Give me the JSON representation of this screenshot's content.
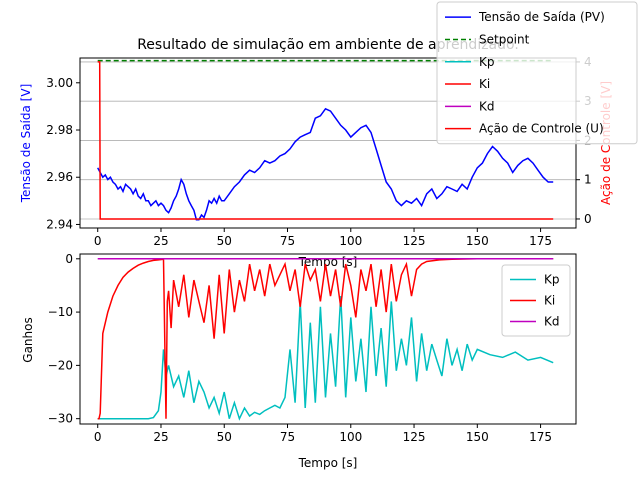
{
  "chart_data": [
    {
      "type": "line",
      "title": "Resultado de simulação em ambiente de aprendizado.",
      "xlabel": "Tempo [s]",
      "ylabel": "Tensão de Saída [V]",
      "ylabel_right": "Ação de Controle [V]",
      "xlim": [
        -7,
        189
      ],
      "ylim": [
        2.9385,
        3.0105
      ],
      "ylim_right": [
        -0.23,
        4.1
      ],
      "x_ticks": [
        "0",
        "25",
        "50",
        "75",
        "100",
        "125",
        "150",
        "175"
      ],
      "y_ticks": [
        "2.94",
        "2.96",
        "2.98",
        "3.00"
      ],
      "y_ticks_right": [
        "0",
        "1",
        "2",
        "3",
        "4"
      ],
      "grid": true,
      "legend": "top-right",
      "colors": {
        "pv": "#0000ff",
        "setpoint": "#008000",
        "kp": "#00bfbf",
        "ki": "#ff0000",
        "kd": "#bf00bf",
        "u": "#ff0000"
      },
      "series": [
        {
          "name": "Tensão de Saída (PV)",
          "axis": "left",
          "x": [
            0,
            1,
            2,
            3,
            4,
            5,
            6,
            7,
            8,
            9,
            10,
            11,
            12,
            13,
            14,
            15,
            16,
            17,
            18,
            19,
            20,
            21,
            22,
            23,
            24,
            25,
            26,
            27,
            28,
            29,
            30,
            31,
            32,
            33,
            34,
            35,
            36,
            37,
            38,
            39,
            40,
            41,
            42,
            43,
            44,
            45,
            46,
            47,
            48,
            49,
            50,
            52,
            54,
            56,
            58,
            60,
            62,
            64,
            66,
            68,
            70,
            72,
            74,
            76,
            78,
            80,
            82,
            84,
            86,
            88,
            90,
            92,
            94,
            96,
            98,
            100,
            102,
            104,
            106,
            108,
            110,
            112,
            114,
            116,
            118,
            120,
            122,
            124,
            126,
            128,
            130,
            132,
            134,
            136,
            138,
            140,
            142,
            144,
            146,
            148,
            150,
            152,
            154,
            156,
            158,
            160,
            162,
            164,
            166,
            168,
            170,
            172,
            174,
            176,
            178,
            180
          ],
          "y": [
            2.964,
            2.962,
            2.96,
            2.961,
            2.959,
            2.96,
            2.958,
            2.957,
            2.955,
            2.956,
            2.954,
            2.957,
            2.956,
            2.955,
            2.953,
            2.955,
            2.952,
            2.951,
            2.953,
            2.95,
            2.95,
            2.948,
            2.949,
            2.95,
            2.948,
            2.949,
            2.948,
            2.946,
            2.945,
            2.947,
            2.95,
            2.952,
            2.955,
            2.959,
            2.957,
            2.953,
            2.95,
            2.948,
            2.946,
            2.942,
            2.942,
            2.944,
            2.943,
            2.946,
            2.95,
            2.949,
            2.951,
            2.949,
            2.952,
            2.95,
            2.95,
            2.953,
            2.956,
            2.958,
            2.961,
            2.963,
            2.962,
            2.964,
            2.967,
            2.966,
            2.967,
            2.969,
            2.97,
            2.972,
            2.975,
            2.977,
            2.978,
            2.979,
            2.985,
            2.986,
            2.989,
            2.988,
            2.985,
            2.982,
            2.98,
            2.977,
            2.979,
            2.981,
            2.982,
            2.979,
            2.972,
            2.965,
            2.958,
            2.955,
            2.95,
            2.948,
            2.95,
            2.949,
            2.951,
            2.948,
            2.953,
            2.955,
            2.951,
            2.953,
            2.956,
            2.955,
            2.954,
            2.957,
            2.955,
            2.96,
            2.964,
            2.966,
            2.97,
            2.973,
            2.971,
            2.968,
            2.966,
            2.962,
            2.965,
            2.967,
            2.968,
            2.966,
            2.963,
            2.96,
            2.958,
            2.958
          ]
        },
        {
          "name": "Setpoint",
          "axis": "left",
          "x": [
            0,
            180
          ],
          "y": [
            3.0094,
            3.0094
          ]
        },
        {
          "name": "Ação de Controle (U)",
          "axis": "right",
          "x": [
            0,
            0.8,
            1,
            180
          ],
          "y": [
            4,
            4,
            0,
            0
          ]
        }
      ]
    },
    {
      "type": "line",
      "title": "",
      "xlabel": "Tempo [s]",
      "ylabel": "Ganhos",
      "xlim": [
        -7,
        189
      ],
      "ylim": [
        -31,
        0.9
      ],
      "x_ticks": [
        "0",
        "25",
        "50",
        "75",
        "100",
        "125",
        "150",
        "175"
      ],
      "y_ticks": [
        "0",
        "−10",
        "−20",
        "−30"
      ],
      "grid": false,
      "legend": "top-right",
      "series": [
        {
          "name": "Kp",
          "x": [
            0,
            5,
            10,
            15,
            20,
            22,
            24,
            25,
            26,
            27,
            28,
            30,
            32,
            34,
            36,
            38,
            40,
            42,
            44,
            46,
            48,
            50,
            52,
            54,
            56,
            58,
            60,
            62,
            64,
            66,
            68,
            70,
            72,
            74,
            76,
            78,
            80,
            82,
            84,
            86,
            88,
            90,
            92,
            94,
            96,
            98,
            100,
            102,
            104,
            106,
            108,
            110,
            112,
            114,
            116,
            118,
            120,
            122,
            124,
            126,
            128,
            130,
            132,
            134,
            136,
            138,
            140,
            142,
            144,
            146,
            148,
            150,
            155,
            160,
            165,
            170,
            175,
            180
          ],
          "y": [
            -30,
            -30,
            -30,
            -30,
            -30,
            -29.8,
            -28.5,
            -25,
            -17,
            -22,
            -20,
            -24,
            -22,
            -26,
            -21,
            -27,
            -23,
            -25,
            -28,
            -26,
            -29,
            -25,
            -30,
            -27,
            -30,
            -28,
            -29.5,
            -28.8,
            -29.2,
            -28.5,
            -28,
            -27.5,
            -28,
            -26,
            -17,
            -27,
            -8,
            -28,
            -12,
            -27,
            -9,
            -26,
            -14,
            -24,
            -7,
            -26,
            -11,
            -23,
            -15,
            -25,
            -9,
            -22,
            -13,
            -24,
            -8,
            -21,
            -15,
            -20,
            -11,
            -23,
            -14,
            -21,
            -16,
            -19,
            -22,
            -15,
            -20,
            -17,
            -21,
            -16,
            -19,
            -17,
            -18,
            -18.5,
            -17.5,
            -19,
            -18.5,
            -19.5
          ]
        },
        {
          "name": "Ki",
          "x": [
            0,
            0.5,
            1,
            2,
            4,
            6,
            8,
            10,
            12,
            14,
            16,
            18,
            20,
            22,
            24,
            26,
            27,
            27.5,
            28,
            29,
            30,
            32,
            34,
            36,
            38,
            40,
            42,
            44,
            46,
            48,
            50,
            52,
            54,
            56,
            58,
            60,
            62,
            64,
            66,
            68,
            70,
            72,
            74,
            76,
            78,
            80,
            82,
            84,
            86,
            88,
            90,
            92,
            94,
            96,
            98,
            100,
            102,
            104,
            106,
            108,
            110,
            112,
            114,
            116,
            118,
            120,
            122,
            124,
            126,
            128,
            130,
            135,
            140,
            150,
            160,
            170,
            180
          ],
          "y": [
            -30,
            -30,
            -29,
            -14,
            -10,
            -7,
            -5,
            -3.5,
            -2.5,
            -1.8,
            -1.2,
            -0.8,
            -0.5,
            -0.3,
            -0.2,
            -0.1,
            -30,
            -8,
            -6,
            -13,
            -4,
            -9,
            -3,
            -11,
            -4,
            -8,
            -12,
            -5,
            -15,
            -3,
            -14,
            -2,
            -10,
            -4,
            -8,
            -1,
            -6,
            -2,
            -7,
            -1,
            -5,
            -3,
            -1,
            -6,
            -2,
            -9,
            -1,
            -4,
            -2,
            -8,
            -1,
            -7,
            -2,
            -9,
            -1,
            -5,
            -11,
            -2,
            -6,
            -1,
            -9,
            -2,
            -10,
            -1,
            -8,
            -3,
            -1,
            -7,
            -2,
            -1,
            -0.5,
            -0.2,
            -0.1,
            0,
            0,
            0,
            0
          ]
        },
        {
          "name": "Kd",
          "x": [
            0,
            180
          ],
          "y": [
            0,
            0
          ]
        }
      ]
    }
  ]
}
